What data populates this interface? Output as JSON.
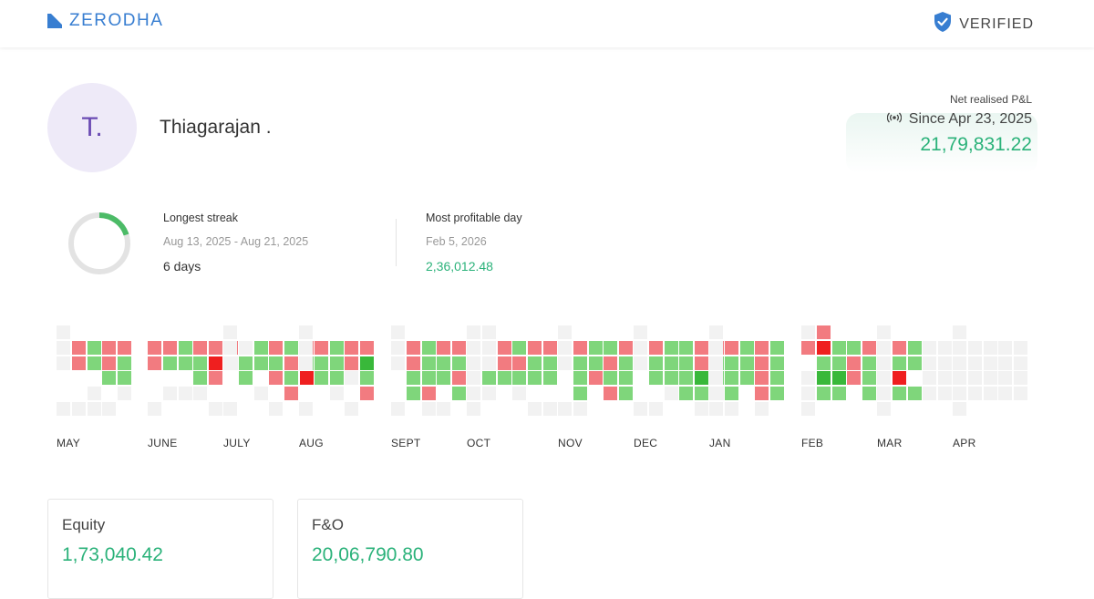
{
  "header": {
    "brand": "ZERODHA",
    "verified_label": "VERIFIED",
    "brand_color": "#387ed1"
  },
  "profile": {
    "initials": "T.",
    "name": "Thiagarajan ."
  },
  "pnl": {
    "label": "Net realised P&L",
    "since": "Since Apr 23, 2025",
    "value": "21,79,831.22",
    "icon": "broadcast-icon"
  },
  "streak": {
    "title": "Longest streak",
    "range": "Aug 13, 2025 - Aug 21, 2025",
    "value": "6 days",
    "ring_fraction": 0.2
  },
  "profitable_day": {
    "title": "Most profitable day",
    "date": "Feb 5, 2026",
    "value": "2,36,012.48"
  },
  "heatmap": {
    "colors": {
      "none": "#f2f2f2",
      "loss_light": "#f59ea0",
      "loss": "#f27b80",
      "loss_strong": "#ef1f1f",
      "profit_light": "#a7e3a4",
      "profit": "#7fd67b",
      "profit_strong": "#39b83a"
    },
    "months": [
      {
        "label": "MAY",
        "weeks": [
          "nnn00n",
          "0ll00n",
          "0pp0nn",
          "0llp0n",
          "0lppn0"
        ]
      },
      {
        "label": "JUNE",
        "weeks": [
          "0ll00n",
          "0lp0n0",
          "0pp0n0",
          "0lppn0",
          "0lLl0n",
          "0ln000"
        ]
      },
      {
        "label": "JULY",
        "weeks": [
          "nnn00n",
          "0npp00",
          "0pp0n0",
          "0lpl0n",
          "0plpl0",
          "0lpL00"
        ]
      },
      {
        "label": "AUG",
        "weeks": [
          "nnn00n",
          "0lpp00",
          "0pppn0",
          "0lln0n",
          "0lPpl0"
        ]
      },
      {
        "label": "SEPT",
        "weeks": [
          "nnn00n",
          "0llpp0",
          "0pppln",
          "0lpp0n",
          "0lplp0"
        ]
      },
      {
        "label": "OCT",
        "weeks": [
          "nnnnnn",
          "nnnpn0",
          "0llp00",
          "0plpn0",
          "0lpp0n",
          "0lpp0n"
        ]
      },
      {
        "label": "NOV",
        "weeks": [
          "nnn00n",
          "0lpppn",
          "0ppl00",
          "0plpl0",
          "0lppp0"
        ]
      },
      {
        "label": "DEC",
        "weeks": [
          "nnn00n",
          "0lpp0n",
          "0pppn0",
          "0pppp0",
          "0llPpn",
          "0lppn0"
        ]
      },
      {
        "label": "JAN",
        "weeks": [
          "nnnnnn",
          "0lpppn",
          "0ppp00",
          "0lllln",
          "0pppp0"
        ]
      },
      {
        "label": "FEB",
        "weeks": [
          "nl0nnn",
          "lLpPp0",
          "0ppPp0",
          "0pll00",
          "0lppp0"
        ]
      },
      {
        "label": "MAR",
        "weeks": [
          "nnnnnn",
          "0lpLp0",
          "0pp0p0",
          "0nnnn0",
          "0nnnn0"
        ]
      },
      {
        "label": "APR",
        "weeks": [
          "nnnnnn",
          "0nnnn0",
          "0nnnn0",
          "0nnnn0",
          "0nnnn0"
        ]
      }
    ]
  },
  "segments": [
    {
      "title": "Equity",
      "value": "1,73,040.42"
    },
    {
      "title": "F&O",
      "value": "20,06,790.80"
    }
  ]
}
